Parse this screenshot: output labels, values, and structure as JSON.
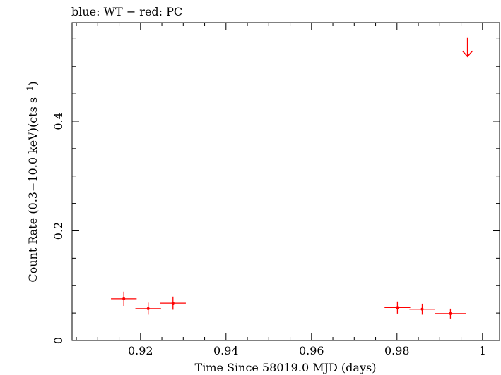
{
  "chart_data": {
    "type": "scatter",
    "title": "blue: WT − red: PC",
    "xlabel": "Time Since 58019.0 MJD (days)",
    "ylabel_main": "Count Rate (0.3−10.0 keV)(cts s",
    "ylabel_sup": "−1",
    "ylabel_end": ")",
    "xlim": [
      0.904,
      1.004
    ],
    "ylim": [
      0,
      0.58
    ],
    "x_ticks": [
      0.92,
      0.94,
      0.96,
      0.98,
      1.0
    ],
    "x_tick_labels": [
      "0.92",
      "0.94",
      "0.96",
      "0.98",
      "1"
    ],
    "x_minor_step": 0.005,
    "y_ticks": [
      0,
      0.2,
      0.4
    ],
    "y_tick_labels": [
      "0",
      "0.2",
      "0.4"
    ],
    "y_minor_step": 0.05,
    "grid": false,
    "series": [
      {
        "name": "PC",
        "color": "#ff0000",
        "points": [
          {
            "x": 0.9161,
            "y": 0.076,
            "xerr": 0.003,
            "yerr": 0.013
          },
          {
            "x": 0.9218,
            "y": 0.058,
            "xerr": 0.003,
            "yerr": 0.011
          },
          {
            "x": 0.9276,
            "y": 0.068,
            "xerr": 0.003,
            "yerr": 0.012
          },
          {
            "x": 0.9801,
            "y": 0.06,
            "xerr": 0.003,
            "yerr": 0.011
          },
          {
            "x": 0.9859,
            "y": 0.057,
            "xerr": 0.003,
            "yerr": 0.01
          },
          {
            "x": 0.9925,
            "y": 0.049,
            "xerr": 0.0036,
            "yerr": 0.009
          }
        ],
        "upper_limits": [
          {
            "x": 0.9965,
            "y": 0.552,
            "arrow_to": 0.518
          }
        ]
      }
    ]
  }
}
